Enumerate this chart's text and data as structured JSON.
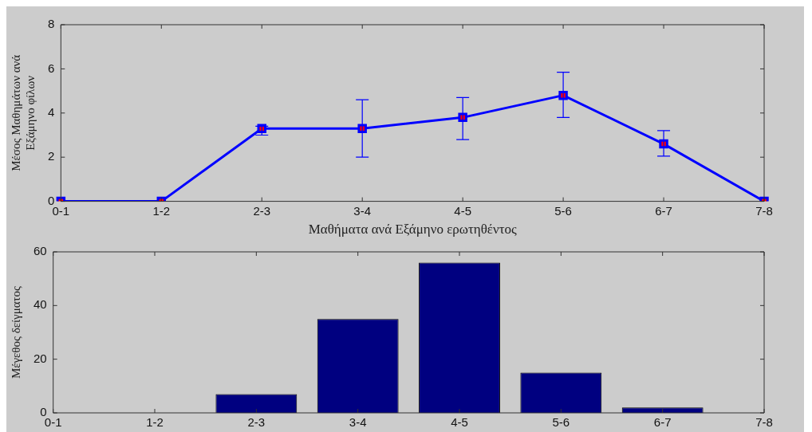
{
  "chart_data": [
    {
      "type": "line",
      "xlabel": "Μαθήματα ανά Εξάμηνο ερωτηθέντος",
      "ylabel": "Μέσος Μαθημάτων ανά Εξάμηνο φίλων",
      "categories": [
        "0-1",
        "1-2",
        "2-3",
        "3-4",
        "4-5",
        "5-6",
        "6-7",
        "7-8"
      ],
      "series": [
        {
          "color": "#0000ff",
          "values": [
            0,
            0,
            3.3,
            3.3,
            3.8,
            4.8,
            2.6,
            0
          ],
          "errors": [
            null,
            null,
            [
              3.0,
              3.4
            ],
            [
              2.0,
              4.6
            ],
            [
              2.8,
              4.7
            ],
            [
              3.8,
              5.85
            ],
            [
              2.05,
              3.2
            ],
            null
          ]
        }
      ],
      "ylim": [
        0,
        8
      ],
      "yticks": [
        0,
        2,
        4,
        6,
        8
      ],
      "marker": "square",
      "line_style": "solid",
      "grid": false,
      "legend": false
    },
    {
      "type": "bar",
      "ylabel": "Μέγεθος δείγματος",
      "categories": [
        "0-1",
        "1-2",
        "2-3",
        "3-4",
        "4-5",
        "5-6",
        "6-7",
        "7-8"
      ],
      "values": [
        0,
        0,
        7,
        35,
        56,
        15,
        2,
        0
      ],
      "color": "#000080",
      "ylim": [
        0,
        60
      ],
      "yticks": [
        0,
        20,
        40,
        60
      ],
      "grid": false,
      "legend": false
    }
  ]
}
